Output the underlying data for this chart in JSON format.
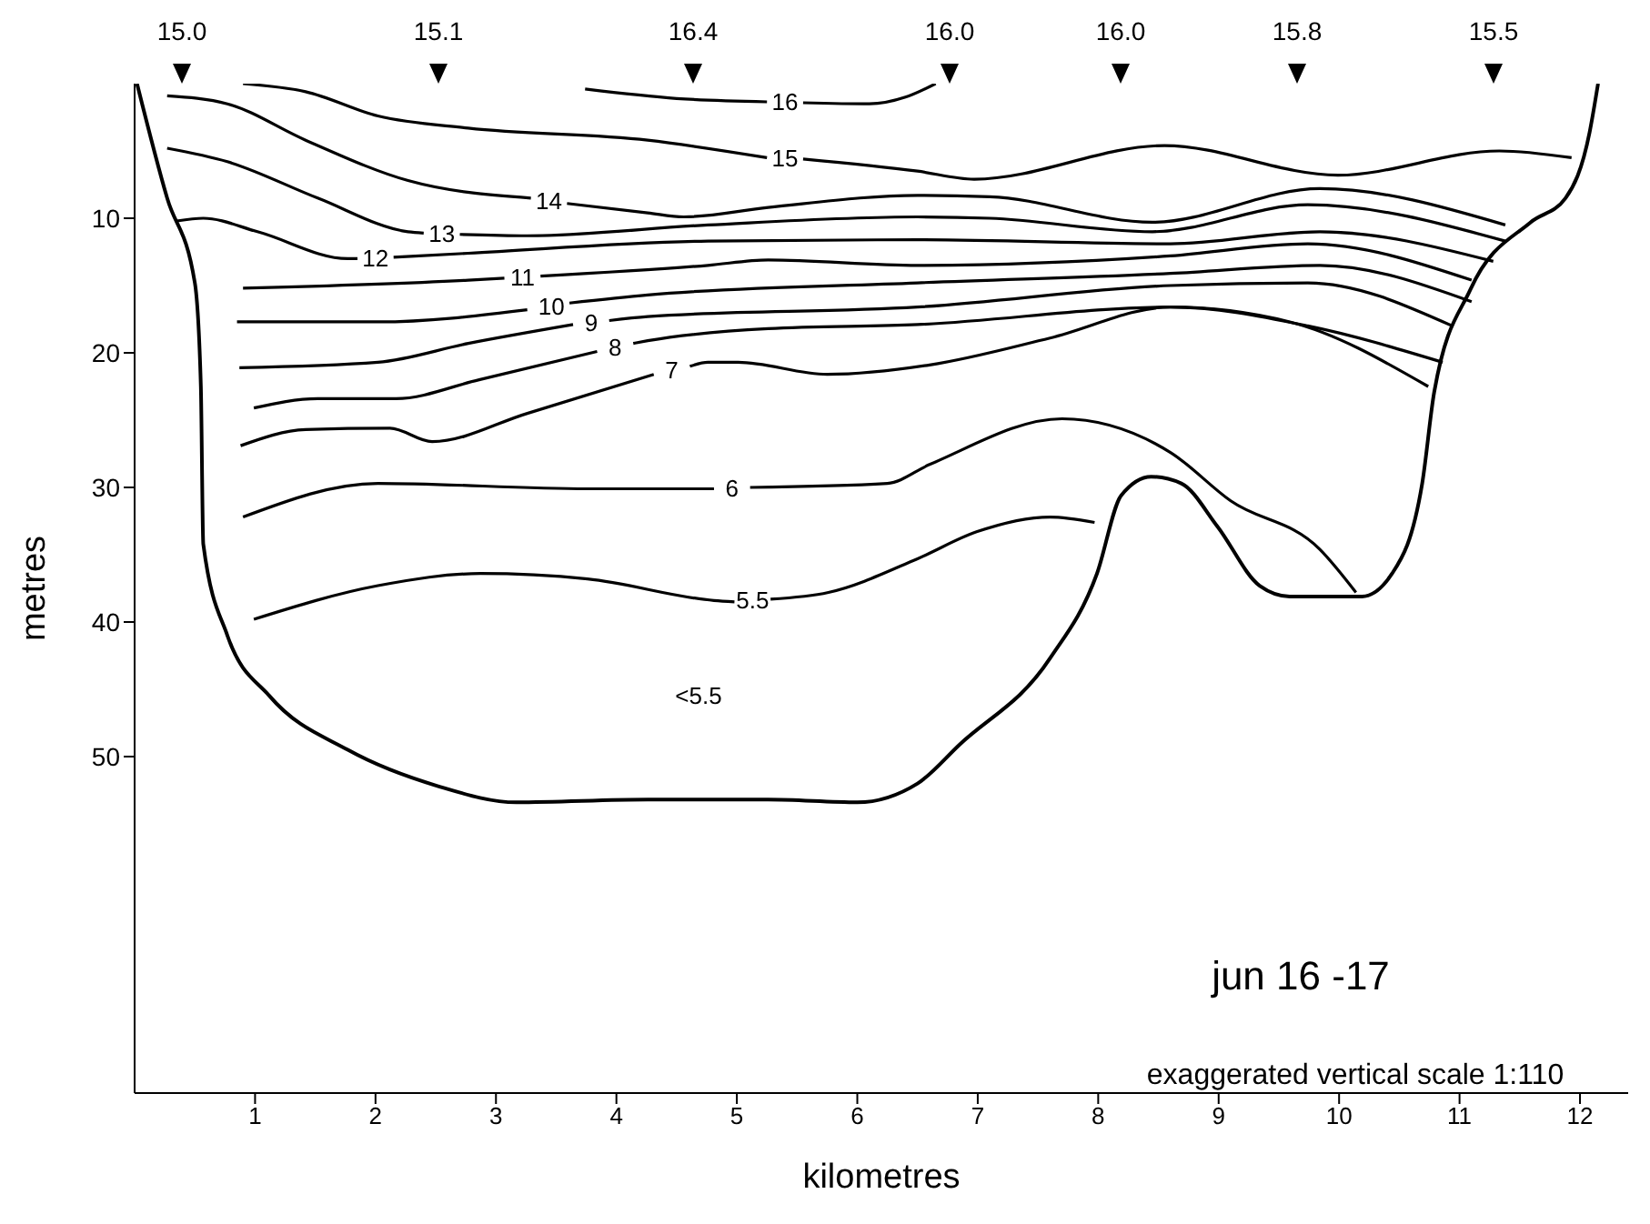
{
  "chart_data": {
    "type": "line",
    "xlabel": "kilometres",
    "ylabel": "metres",
    "xlim": [
      0,
      12.4
    ],
    "ylim": [
      75,
      0
    ],
    "xticks": [
      1,
      2,
      3,
      4,
      5,
      6,
      7,
      8,
      9,
      10,
      11,
      12
    ],
    "yticks": [
      10,
      20,
      30,
      40,
      50
    ],
    "marker": "none",
    "series": [
      {
        "name": "16",
        "color": "#000000",
        "x": [
          3.74,
          4.5,
          5.25,
          5.4,
          5.55,
          6.1,
          6.4,
          6.65
        ],
        "values": [
          0.4,
          1.1,
          1.35,
          null,
          1.42,
          1.5,
          1.0,
          0
        ]
      },
      {
        "name": "15",
        "color": "#000000",
        "x": [
          0.9,
          1.42,
          2.02,
          2.77,
          4.26,
          5.25,
          5.4,
          5.55,
          6.5,
          6.97,
          8.55,
          9.99,
          11.33,
          11.93
        ],
        "values": [
          0,
          0.6,
          2.4,
          3.3,
          4.2,
          5.5,
          null,
          5.6,
          6.5,
          7.1,
          4.6,
          6.8,
          5.0,
          5.5
        ]
      },
      {
        "name": "14",
        "color": "#000000",
        "x": [
          0.27,
          0.77,
          1.42,
          2.27,
          3.29,
          3.44,
          3.59,
          4.26,
          4.56,
          5.26,
          6.5,
          7.1,
          8.45,
          9.84,
          11.38
        ],
        "values": [
          0.9,
          1.5,
          4.2,
          7.2,
          8.5,
          null,
          8.9,
          9.6,
          9.9,
          9.2,
          8.3,
          8.4,
          10.3,
          7.8,
          10.5
        ]
      },
      {
        "name": "13",
        "color": "#000000",
        "x": [
          0.27,
          0.77,
          1.52,
          2.27,
          2.4,
          2.55,
          2.7,
          3.26,
          4.76,
          6.5,
          7.1,
          8.45,
          9.74,
          11.38
        ],
        "values": [
          4.8,
          5.8,
          8.5,
          11.0,
          11.1,
          null,
          11.2,
          11.3,
          10.5,
          9.9,
          10.0,
          11.0,
          9.0,
          11.7
        ]
      },
      {
        "name": "12",
        "color": "#000000",
        "x": [
          0.35,
          0.57,
          1.02,
          1.77,
          1.85,
          2.0,
          2.15,
          2.77,
          4.76,
          6.5,
          8.6,
          9.84,
          11.28
        ],
        "values": [
          10.2,
          10.0,
          11.0,
          13.0,
          13.0,
          null,
          12.9,
          12.6,
          11.7,
          11.6,
          11.9,
          11.0,
          13.2
        ]
      },
      {
        "name": "11",
        "color": "#000000",
        "x": [
          0.9,
          2.77,
          3.07,
          3.22,
          3.37,
          4.76,
          5.26,
          6.5,
          8.6,
          9.74,
          11.1
        ],
        "values": [
          15.2,
          14.6,
          14.45,
          null,
          14.3,
          13.5,
          13.1,
          13.5,
          12.8,
          11.9,
          14.6
        ]
      },
      {
        "name": "10",
        "color": "#000000",
        "x": [
          0.85,
          2.02,
          3.26,
          3.46,
          3.61,
          4.26,
          6.5,
          8.6,
          9.84,
          11.1
        ],
        "values": [
          17.7,
          17.7,
          16.8,
          null,
          16.3,
          15.7,
          14.8,
          14.1,
          13.5,
          16.2
        ]
      },
      {
        "name": "9",
        "color": "#000000",
        "x": [
          0.87,
          2.02,
          2.77,
          3.64,
          3.79,
          3.94,
          4.26,
          6.5,
          8.6,
          9.74,
          10.94
        ],
        "values": [
          21.1,
          20.7,
          19.3,
          17.9,
          null,
          17.6,
          17.3,
          16.6,
          15.0,
          14.8,
          18.0
        ]
      },
      {
        "name": "8",
        "color": "#000000",
        "x": [
          0.99,
          1.52,
          2.17,
          2.86,
          3.84,
          3.99,
          4.14,
          4.26,
          5.26,
          6.5,
          8.6,
          9.74,
          10.86
        ],
        "values": [
          24.1,
          23.4,
          23.4,
          22.0,
          19.9,
          null,
          19.3,
          19.1,
          18.2,
          17.9,
          16.6,
          18.0,
          20.7
        ]
      },
      {
        "name": "7",
        "color": "#000000",
        "x": [
          0.88,
          1.42,
          2.12,
          2.47,
          3.26,
          4.31,
          4.46,
          4.61,
          4.76,
          5.01,
          5.75,
          6.6,
          7.6,
          8.6,
          9.59,
          10.74
        ],
        "values": [
          26.9,
          25.7,
          25.6,
          26.6,
          24.5,
          21.6,
          null,
          21.0,
          20.7,
          20.7,
          21.6,
          20.9,
          18.9,
          16.6,
          17.7,
          22.5
        ]
      },
      {
        "name": "6",
        "color": "#000000",
        "x": [
          0.9,
          2.02,
          3.76,
          4.81,
          4.96,
          5.11,
          6.25,
          6.6,
          7.7,
          8.6,
          9.1,
          9.84,
          10.14
        ],
        "values": [
          32.2,
          29.7,
          30.1,
          30.1,
          null,
          30.0,
          29.7,
          28.3,
          24.9,
          27.4,
          31.0,
          34.6,
          37.8
        ]
      },
      {
        "name": "5.5",
        "color": "#000000",
        "x": [
          0.99,
          2.02,
          2.87,
          3.76,
          4.81,
          4.98,
          5.13,
          5.28,
          5.76,
          6.5,
          6.99,
          7.6,
          7.97
        ],
        "values": [
          39.8,
          37.3,
          36.4,
          36.8,
          38.4,
          38.5,
          null,
          38.3,
          37.8,
          35.3,
          33.3,
          32.2,
          32.6
        ]
      },
      {
        "color": "#000000",
        "x": [
          0.02,
          0.27,
          0.5,
          0.55,
          0.57,
          0.77,
          1.12,
          1.77,
          2.52,
          3.17,
          4.26,
          5.26,
          6.0,
          6.5,
          6.85,
          7.6,
          7.99,
          8.19,
          8.44,
          8.69,
          8.99,
          9.34,
          9.59,
          10.19,
          10.44,
          10.69,
          10.79,
          11.09,
          11.59,
          11.88,
          12.08,
          12.15
        ],
        "values": [
          0,
          8.5,
          14.8,
          22.5,
          34.2,
          41.0,
          45.5,
          49.5,
          52.2,
          53.4,
          53.2,
          53.2,
          53.4,
          52.0,
          49.1,
          42.7,
          36.4,
          30.6,
          29.2,
          29.7,
          32.9,
          37.3,
          38.1,
          38.1,
          36.4,
          29.7,
          22.9,
          15.3,
          10.3,
          8.5,
          3.6,
          0
        ]
      }
    ],
    "annotations": [
      "15.0",
      "15.1",
      "16.4",
      "16.0",
      "16.0",
      "15.8",
      "15.5",
      "<5.5",
      "jun 16 -17",
      "exaggerated vertical scale 1:110"
    ]
  }
}
